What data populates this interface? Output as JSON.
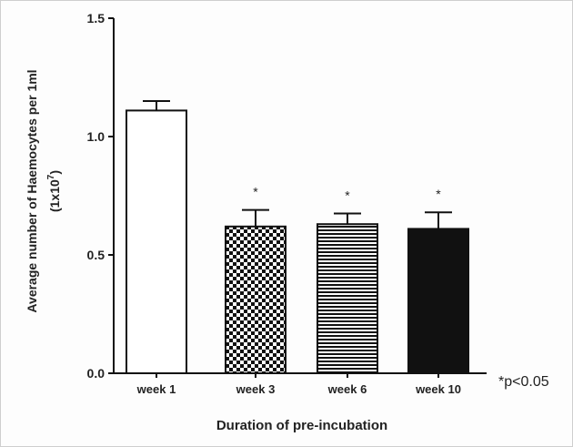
{
  "chart_data": {
    "type": "bar",
    "categories": [
      "week 1",
      "week 3",
      "week 6",
      "week 10"
    ],
    "values": [
      1.11,
      0.62,
      0.63,
      0.61
    ],
    "errors": [
      0.04,
      0.07,
      0.045,
      0.07
    ],
    "significance_marks": [
      "",
      "*",
      "*",
      "*"
    ],
    "fills": [
      "empty",
      "checkerboard",
      "horizontal-lines",
      "solid-black"
    ],
    "title": "",
    "xlabel": "Duration of pre-incubation",
    "ylabel": "Average number of Haemocytes per 1ml",
    "ylabel_unit_base": "(1x10",
    "ylabel_unit_exp": "7",
    "ylabel_unit_close": ")",
    "yticks": [
      "0.0",
      "0.5",
      "1.0",
      "1.5"
    ],
    "ytick_values": [
      0,
      0.5,
      1.0,
      1.5
    ],
    "ylim": [
      0,
      1.5
    ],
    "note": "*p<0.05",
    "grid": false
  }
}
